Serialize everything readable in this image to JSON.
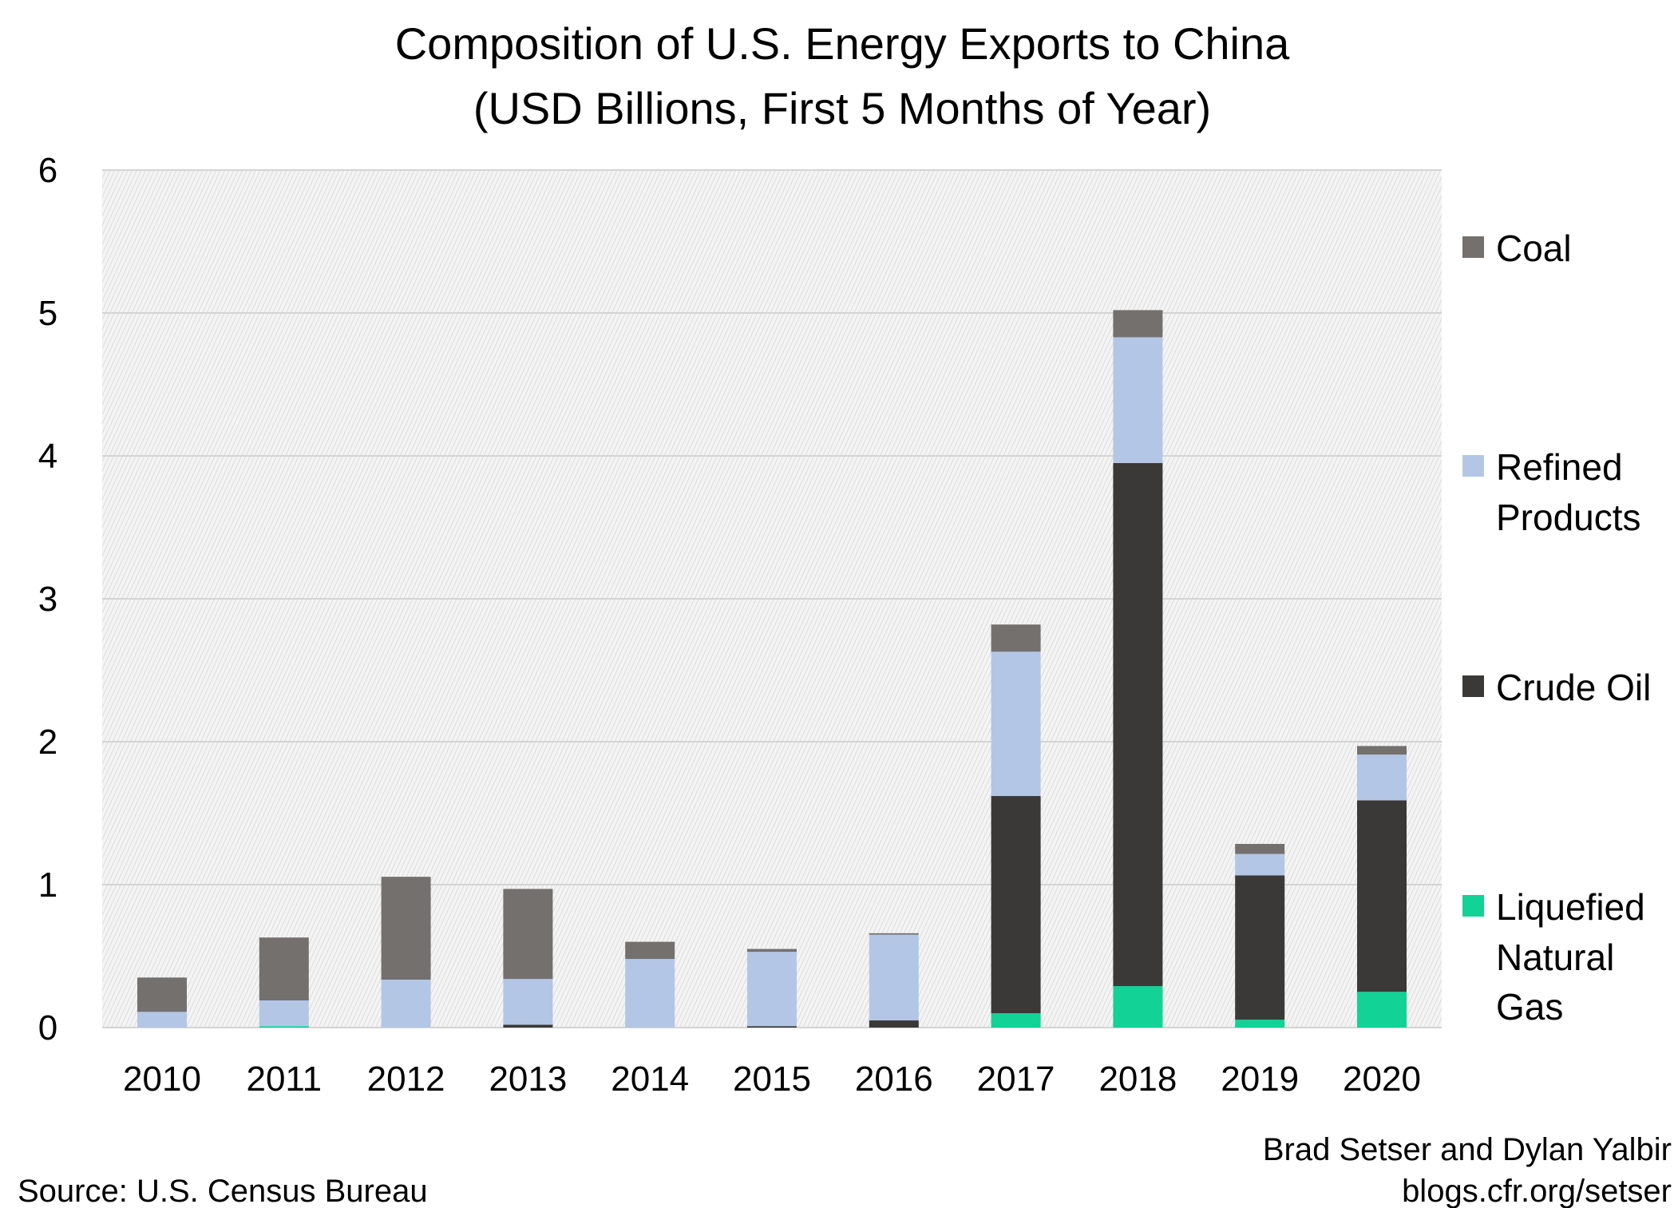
{
  "chart_data": {
    "type": "bar",
    "stacked": true,
    "title": "Composition of U.S. Energy Exports to China",
    "subtitle": "(USD Billions, First 5 Months of Year)",
    "xlabel": "",
    "ylabel": "",
    "ylim": [
      0,
      6
    ],
    "yticks": [
      "0",
      "1",
      "2",
      "3",
      "4",
      "5",
      "6"
    ],
    "grid": true,
    "legend_placement": "right",
    "categories": [
      "2010",
      "2011",
      "2012",
      "2013",
      "2014",
      "2015",
      "2016",
      "2017",
      "2018",
      "2019",
      "2020"
    ],
    "series": [
      {
        "name": "Liquefied Natural Gas",
        "legend_lines": [
          "Liquefied",
          "Natural",
          "Gas"
        ],
        "color": "#12d296",
        "values": [
          0,
          0.01,
          0,
          0,
          0,
          0,
          0,
          0.1,
          0.29,
          0.055,
          0.25
        ]
      },
      {
        "name": "Crude Oil",
        "legend_lines": [
          "Crude Oil"
        ],
        "color": "#3a3938",
        "values": [
          0,
          0,
          0,
          0.02,
          0,
          0.01,
          0.05,
          1.52,
          3.66,
          1.01,
          1.34
        ]
      },
      {
        "name": "Refined Products",
        "legend_lines": [
          "Refined",
          "Products"
        ],
        "color": "#b3c6e5",
        "values": [
          0.11,
          0.18,
          0.335,
          0.32,
          0.48,
          0.52,
          0.6,
          1.01,
          0.88,
          0.15,
          0.32
        ]
      },
      {
        "name": "Coal",
        "legend_lines": [
          "Coal"
        ],
        "color": "#74706e",
        "values": [
          0.24,
          0.44,
          0.72,
          0.63,
          0.12,
          0.02,
          0.01,
          0.19,
          0.19,
          0.07,
          0.06
        ]
      }
    ]
  },
  "source": "Source: U.S. Census Bureau",
  "credit": {
    "authors": "Brad Setser and Dylan Yalbir",
    "site": "blogs.cfr.org/setser"
  }
}
